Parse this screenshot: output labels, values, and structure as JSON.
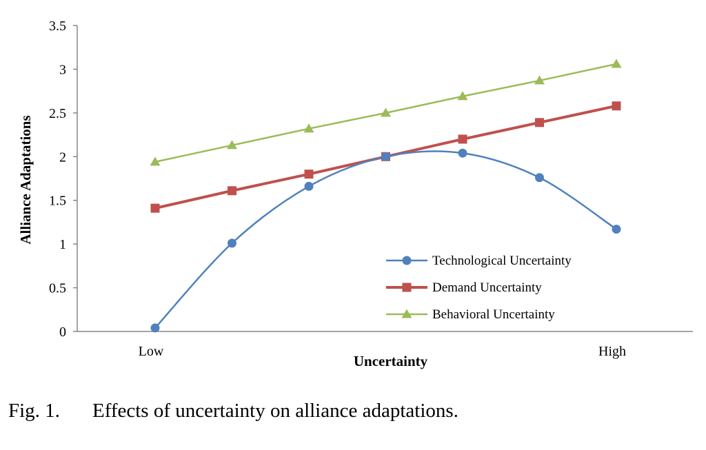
{
  "caption": {
    "number": "Fig. 1.",
    "text": "Effects of uncertainty on alliance adaptations."
  },
  "chart_data": {
    "type": "line",
    "xlabel": "Uncertainty",
    "ylabel": "Alliance Adaptations",
    "ylim": [
      0,
      3.5
    ],
    "yticks": [
      "0",
      "0.5",
      "1",
      "1.5",
      "2",
      "2.5",
      "3",
      "3.5"
    ],
    "ytick_values": [
      0,
      0.5,
      1,
      1.5,
      2,
      2.5,
      3,
      3.5
    ],
    "x": [
      1,
      2,
      3,
      4,
      5,
      6,
      7
    ],
    "x_tick_labels": [
      {
        "x": 1,
        "label": "Low"
      },
      {
        "x": 7,
        "label": "High"
      }
    ],
    "grid": false,
    "legend_position": "bottom-right",
    "series": [
      {
        "name": "Technological Uncertainty",
        "color": "#4f81bd",
        "marker": "circle",
        "smooth": true,
        "values": [
          0.04,
          1.01,
          1.66,
          2.0,
          2.04,
          1.76,
          1.17
        ]
      },
      {
        "name": "Demand Uncertainty",
        "color": "#c0504d",
        "marker": "square",
        "smooth": false,
        "values": [
          1.41,
          1.61,
          1.8,
          2.0,
          2.2,
          2.39,
          2.58
        ]
      },
      {
        "name": "Behavioral Uncertainty",
        "color": "#9bbb59",
        "marker": "triangle",
        "smooth": false,
        "values": [
          1.94,
          2.13,
          2.32,
          2.5,
          2.69,
          2.87,
          3.06
        ]
      }
    ]
  }
}
